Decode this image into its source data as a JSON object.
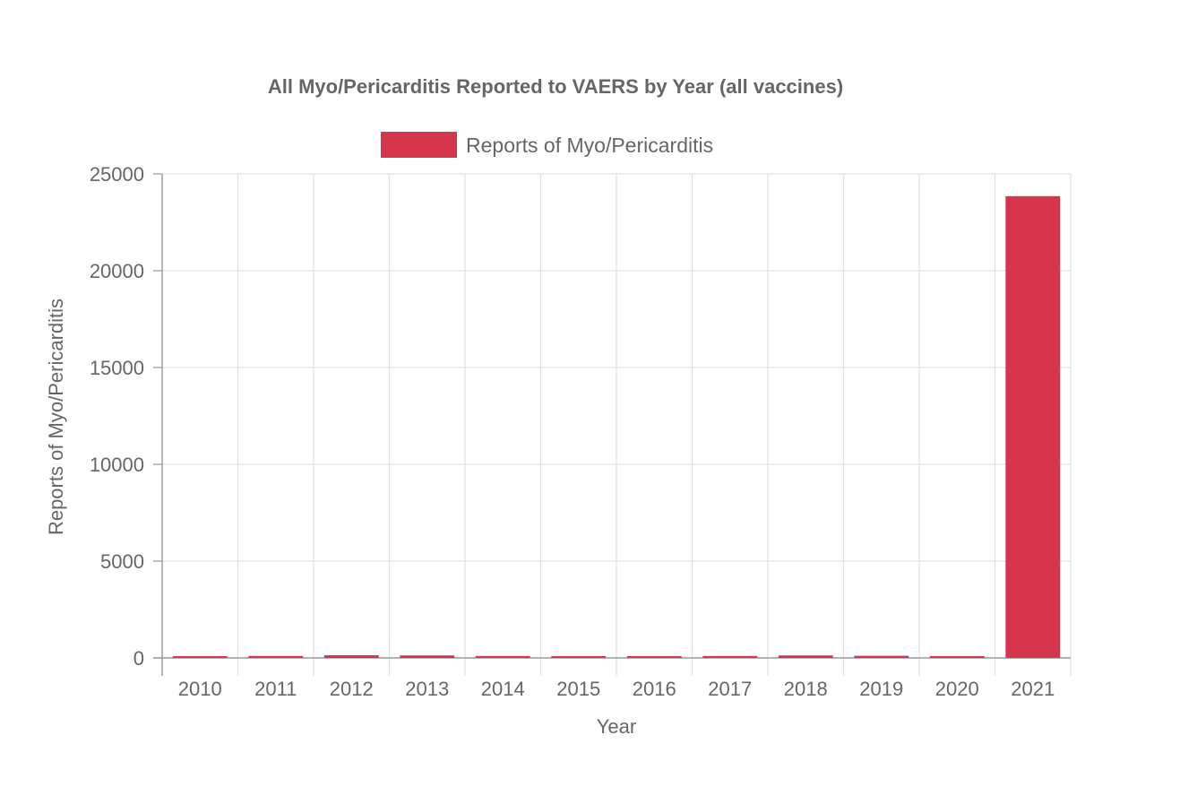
{
  "chart_data": {
    "type": "bar",
    "title": "All Myo/Pericarditis Reported to VAERS by Year (all vaccines)",
    "xlabel": "Year",
    "ylabel": "Reports of Myo/Pericarditis",
    "categories": [
      "2010",
      "2011",
      "2012",
      "2013",
      "2014",
      "2015",
      "2016",
      "2017",
      "2018",
      "2019",
      "2020",
      "2021"
    ],
    "series": [
      {
        "name": "Reports of Myo/Pericarditis",
        "values": [
          90,
          100,
          140,
          130,
          100,
          40,
          60,
          100,
          130,
          110,
          90,
          23850
        ],
        "color": "#d6364b"
      }
    ],
    "ylim": [
      0,
      25000
    ],
    "yticks": [
      "25000",
      "20000",
      "15000",
      "10000",
      "5000",
      "0"
    ],
    "grid": true,
    "legend": "top-center"
  }
}
